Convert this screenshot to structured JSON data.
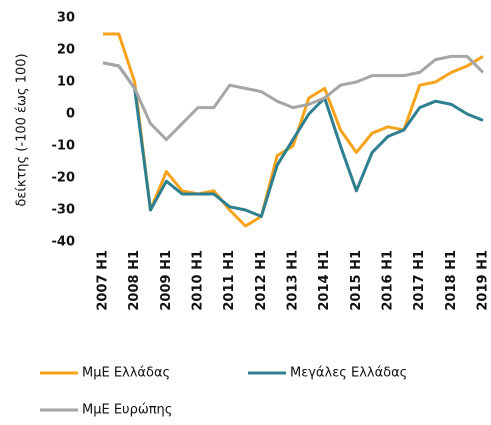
{
  "chart_data": {
    "type": "line",
    "y_label": "δείκτης (-100 έως 100)",
    "categories": [
      "2007 H1",
      null,
      "2008 H1",
      null,
      "2009 H1",
      null,
      "2010 H1",
      null,
      "2011 H1",
      null,
      "2012 H1",
      null,
      "2013 H1",
      null,
      "2014 H1",
      null,
      "2015 H1",
      null,
      "2016 H1",
      null,
      "2017 H1",
      null,
      "2018 H1",
      null,
      "2019 H1"
    ],
    "series": [
      {
        "name": "ΜμΕ Ελλάδας",
        "color": "#f7a21b",
        "values": [
          25,
          25,
          10,
          -30,
          -18,
          -24,
          -25,
          -24,
          -30,
          -35,
          -32,
          -13,
          -10,
          5,
          8,
          -5,
          -12,
          -6,
          -4,
          -5,
          9,
          10,
          13,
          15,
          18
        ]
      },
      {
        "name": "Μεγάλες Ελλάδας",
        "color": "#2e7f8f",
        "values": [
          16,
          15,
          8,
          -30,
          -21,
          -25,
          -25,
          -25,
          -29,
          -30,
          -32,
          -16,
          -8,
          0,
          5,
          -10,
          -24,
          -12,
          -7,
          -5,
          2,
          4,
          3,
          0,
          -2
        ]
      },
      {
        "name": "ΜμΕ Ευρώπης",
        "color": "#a6a6a6",
        "values": [
          16,
          15,
          8,
          -3,
          -8,
          -3,
          2,
          2,
          9,
          8,
          7,
          4,
          2,
          3,
          5,
          9,
          10,
          12,
          12,
          12,
          13,
          17,
          18,
          18,
          13
        ]
      }
    ],
    "ylim": [
      -40,
      30
    ],
    "yticks": [
      -40,
      -30,
      -20,
      -10,
      0,
      10,
      20,
      30
    ],
    "grid": false,
    "legend": "bottom"
  }
}
